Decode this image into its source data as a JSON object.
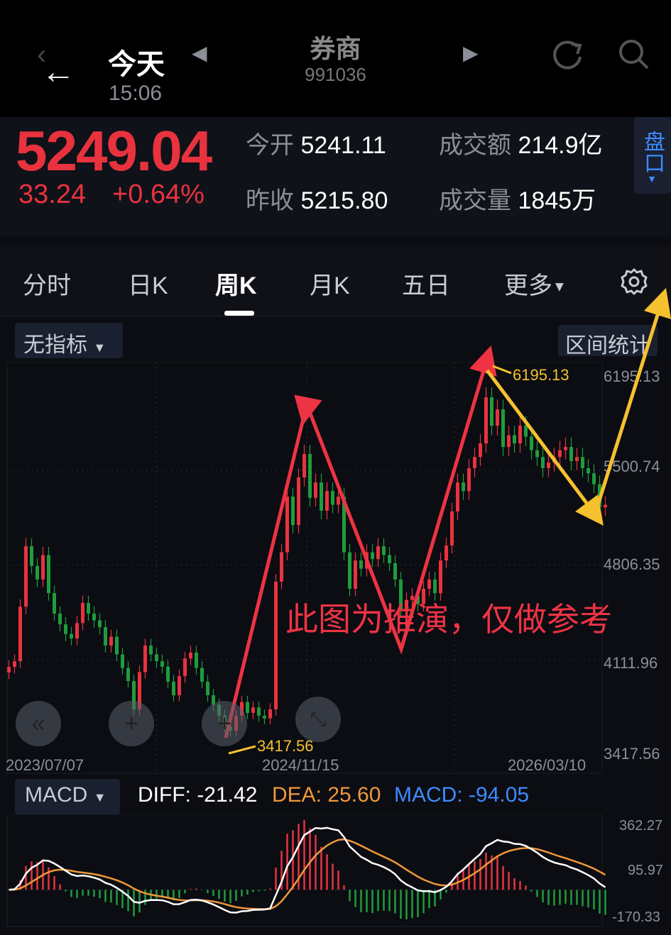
{
  "header": {
    "day": "今天",
    "time": "15:06",
    "name": "券商",
    "code": "991036"
  },
  "quote": {
    "price": "5249.04",
    "change": "33.24",
    "change_pct": "+0.64%",
    "open_label": "今开",
    "open": "5241.11",
    "prev_label": "昨收",
    "prev": "5215.80",
    "amount_label": "成交额",
    "amount": "214.9亿",
    "volume_label": "成交量",
    "volume": "1845万",
    "panel_btn": "盘口"
  },
  "tabs": [
    {
      "label": "分时"
    },
    {
      "label": "日K"
    },
    {
      "label": "周K",
      "active": true
    },
    {
      "label": "月K"
    },
    {
      "label": "五日"
    },
    {
      "label": "更多"
    }
  ],
  "indicator_select": "无指标",
  "range_stats": "区间统计",
  "colors": {
    "up": "#e8333f",
    "down": "#1f9c3c",
    "accent": "#3d8bff",
    "dea": "#f0973a",
    "annot_yellow": "#f5c12e"
  },
  "chart_data": {
    "type": "candlestick",
    "x_labels": [
      "2023/07/07",
      "2024/11/15",
      "2026/03/10"
    ],
    "y_ticks": [
      "6195.13",
      "5500.74",
      "4806.35",
      "4111.96",
      "3417.56"
    ],
    "ylim": [
      3417.56,
      6195.13
    ],
    "closes": [
      4058,
      4100,
      4500,
      4945,
      4800,
      4700,
      4880,
      4600,
      4450,
      4371,
      4300,
      4267,
      4380,
      4528,
      4450,
      4400,
      4350,
      4215,
      4280,
      4150,
      4050,
      3954,
      3746,
      4020,
      4215,
      4150,
      4100,
      4060,
      3950,
      3850,
      3990,
      4120,
      4163,
      4050,
      3950,
      3850,
      3780,
      3700,
      3620,
      3590,
      3700,
      3800,
      3720,
      3760,
      3700,
      3680,
      3746,
      4684,
      4900,
      5309,
      5100,
      5450,
      5622,
      5300,
      5413,
      5205,
      5350,
      5250,
      5309,
      4900,
      4632,
      4840,
      4780,
      4900,
      4850,
      4945,
      4880,
      4820,
      4700,
      4476,
      4550,
      4580,
      4520,
      4632,
      4700,
      4600,
      4840,
      4950,
      5200,
      5413,
      5350,
      5518,
      5600,
      5700,
      6039,
      5830,
      5950,
      5674,
      5760,
      5700,
      5830,
      5750,
      5650,
      5600,
      5518,
      5560,
      5600,
      5650,
      5674,
      5570,
      5600,
      5518,
      5480,
      5400,
      5230,
      5249
    ],
    "high_label": "6195.13",
    "low_label": "3417.56",
    "annotation": "此图为推演，仅做参考"
  },
  "macd": {
    "select": "MACD",
    "diff": "DIFF: -21.42",
    "dea": "DEA: 25.60",
    "macd": "MACD: -94.05",
    "y_ticks": [
      "362.27",
      "95.97",
      "-170.33"
    ]
  }
}
